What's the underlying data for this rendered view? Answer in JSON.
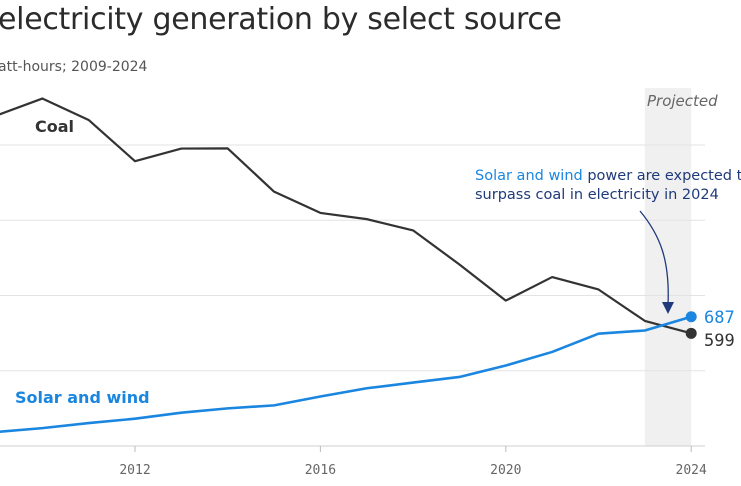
{
  "title": "electricity generation by select source",
  "subtitle": "att-hours; 2009-2024",
  "colors": {
    "coal": "#333333",
    "solar_wind": "#1a86e0",
    "annotation": "#1f3a7a",
    "projected_band": "#f0f0f0",
    "grid": "#e3e3e3"
  },
  "chart_data": {
    "type": "line",
    "x": [
      2009,
      2010,
      2011,
      2012,
      2013,
      2014,
      2015,
      2016,
      2017,
      2018,
      2019,
      2020,
      2021,
      2022,
      2023,
      2024
    ],
    "series": [
      {
        "name": "Coal",
        "values": [
          1756,
          1847,
          1733,
          1514,
          1581,
          1582,
          1352,
          1239,
          1206,
          1146,
          965,
          773,
          898,
          832,
          665,
          599
        ]
      },
      {
        "name": "Solar and wind",
        "values": [
          74,
          95,
          122,
          145,
          177,
          200,
          216,
          263,
          307,
          337,
          367,
          428,
          500,
          597,
          614,
          687
        ]
      }
    ],
    "x_ticks": [
      "2012",
      "2016",
      "2020",
      "2024"
    ],
    "ylim": [
      0,
      1600
    ],
    "y_gridlines": [
      0,
      400,
      800,
      1200,
      1600
    ],
    "grid": true,
    "projected_label": "Projected",
    "projected_range": [
      2023,
      2024
    ],
    "end_labels": [
      "687",
      "599"
    ],
    "annotation": {
      "highlight": "Solar and wind",
      "rest_line1": " power are expected t",
      "line2": "surpass coal in electricity in 2024"
    }
  }
}
